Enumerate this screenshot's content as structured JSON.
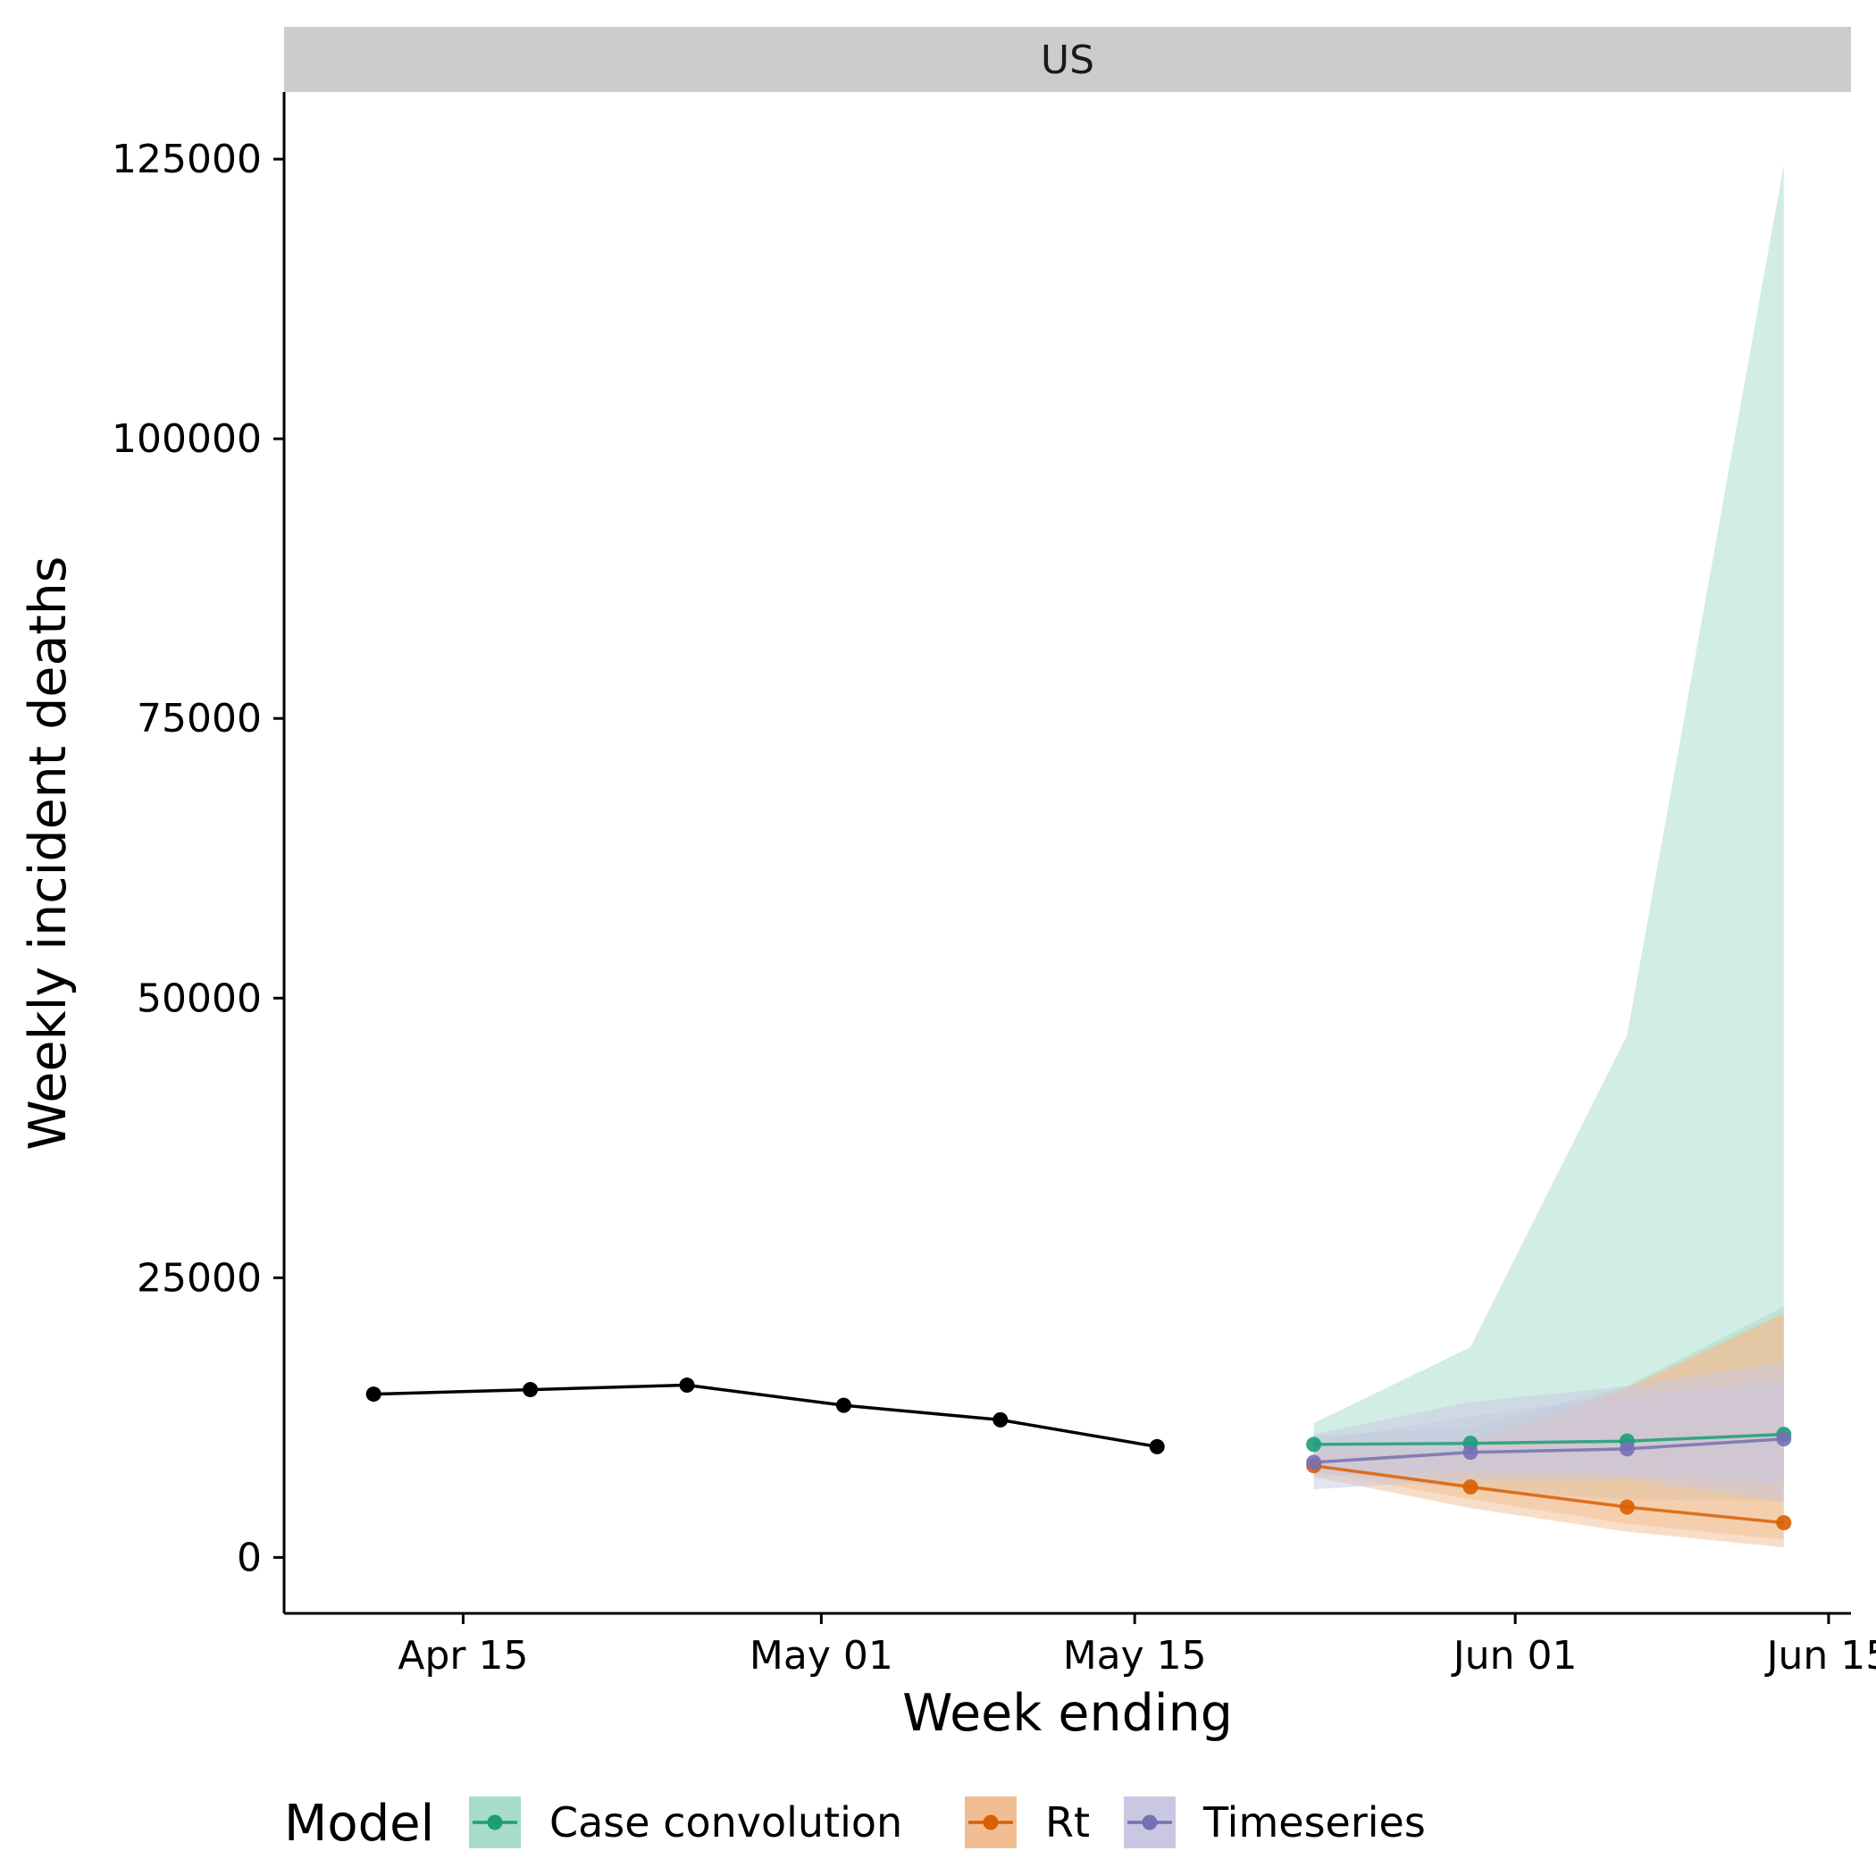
{
  "chart_data": {
    "type": "line",
    "facet": "US",
    "xlabel": "Week ending",
    "ylabel": "Weekly incident deaths",
    "x_tick_labels": [
      {
        "date": "2020-04-15",
        "label": "Apr 15"
      },
      {
        "date": "2020-05-01",
        "label": "May 01"
      },
      {
        "date": "2020-05-15",
        "label": "May 15"
      },
      {
        "date": "2020-06-01",
        "label": "Jun 01"
      },
      {
        "date": "2020-06-15",
        "label": "Jun 15"
      }
    ],
    "y_ticks": [
      0,
      25000,
      50000,
      75000,
      100000,
      125000
    ],
    "y_tick_labels": [
      "0",
      "25000",
      "50000",
      "75000",
      "100000",
      "125000"
    ],
    "xlim": [
      "2020-04-07",
      "2020-06-16"
    ],
    "ylim": [
      -5000,
      131000
    ],
    "grid": false,
    "legend": {
      "title": "Model",
      "position": "bottom",
      "entries": [
        "Case convolution",
        "Rt",
        "Timeseries"
      ]
    },
    "observed": {
      "color": "#000000",
      "x": [
        "2020-04-11",
        "2020-04-18",
        "2020-04-25",
        "2020-05-02",
        "2020-05-09",
        "2020-05-16"
      ],
      "y": [
        14600,
        15000,
        15400,
        13600,
        12300,
        9900
      ]
    },
    "forecasts": [
      {
        "name": "Case convolution",
        "color": "#1b9e77",
        "fill": "#a6dcc9",
        "x": [
          "2020-05-23",
          "2020-05-30",
          "2020-06-06",
          "2020-06-13"
        ],
        "y": [
          10100,
          10200,
          10400,
          11000
        ],
        "inner_lower": [
          9200,
          8400,
          8000,
          7800
        ],
        "inner_upper": [
          10900,
          11600,
          15300,
          22400
        ],
        "outer_lower": [
          7900,
          6000,
          5200,
          5000
        ],
        "outer_upper": [
          12000,
          18800,
          46700,
          124500
        ]
      },
      {
        "name": "Rt",
        "color": "#d95f02",
        "fill": "#f1bd93",
        "x": [
          "2020-05-23",
          "2020-05-30",
          "2020-06-06",
          "2020-06-13"
        ],
        "y": [
          8200,
          6300,
          4500,
          3100
        ],
        "inner_lower": [
          7700,
          5200,
          3000,
          1600
        ],
        "inner_upper": [
          9200,
          9300,
          15000,
          21700
        ],
        "outer_lower": [
          7200,
          4400,
          2300,
          900
        ],
        "outer_upper": [
          10000,
          10500,
          15200,
          21900
        ]
      },
      {
        "name": "Timeseries",
        "color": "#7570b3",
        "fill": "#c9c7e2",
        "x": [
          "2020-05-23",
          "2020-05-30",
          "2020-06-06",
          "2020-06-13"
        ],
        "y": [
          8500,
          9400,
          9700,
          10600
        ],
        "inner_lower": [
          7300,
          7700,
          7400,
          6600
        ],
        "inner_upper": [
          10400,
          12600,
          14500,
          15700
        ],
        "outer_lower": [
          6100,
          6900,
          7000,
          5000
        ],
        "outer_upper": [
          11000,
          13900,
          15300,
          17500
        ]
      }
    ]
  }
}
